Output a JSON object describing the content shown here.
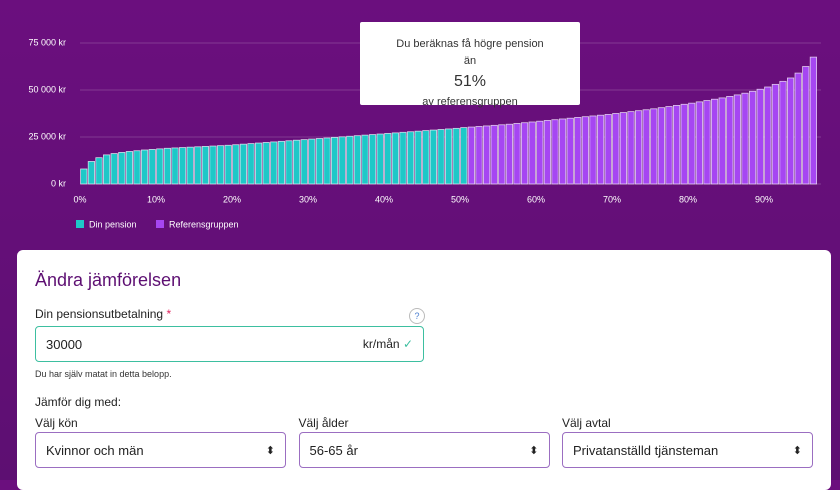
{
  "chart_data": {
    "type": "bar",
    "annotations": {
      "line1": "Du beräknas få högre pension",
      "line2": "än",
      "percent": "51%",
      "line3": "av referensgruppen"
    },
    "series": [
      {
        "name": "Din pension",
        "color": "#1ec8c8",
        "x": [
          1,
          2,
          3,
          4,
          5,
          6,
          7,
          8,
          9,
          10,
          11,
          12,
          13,
          14,
          15,
          16,
          17,
          18,
          19,
          20,
          21,
          22,
          23,
          24,
          25,
          26,
          27,
          28,
          29,
          30,
          31,
          32,
          33,
          34,
          35,
          36,
          37,
          38,
          39,
          40,
          41,
          42,
          43,
          44,
          45,
          46,
          47,
          48,
          49,
          50,
          51
        ],
        "values": [
          8000,
          12000,
          14000,
          15500,
          16200,
          16800,
          17300,
          17700,
          18100,
          18400,
          18700,
          19000,
          19200,
          19400,
          19600,
          19800,
          20000,
          20200,
          20400,
          20600,
          20900,
          21200,
          21500,
          21800,
          22100,
          22400,
          22700,
          23000,
          23300,
          23600,
          23900,
          24200,
          24500,
          24800,
          25100,
          25400,
          25700,
          26000,
          26300,
          26600,
          26900,
          27200,
          27500,
          27800,
          28100,
          28400,
          28700,
          29000,
          29300,
          29600,
          30000
        ]
      },
      {
        "name": "Referensgruppen",
        "color": "#a646f2",
        "x": [
          52,
          53,
          54,
          55,
          56,
          57,
          58,
          59,
          60,
          61,
          62,
          63,
          64,
          65,
          66,
          67,
          68,
          69,
          70,
          71,
          72,
          73,
          74,
          75,
          76,
          77,
          78,
          79,
          80,
          81,
          82,
          83,
          84,
          85,
          86,
          87,
          88,
          89,
          90,
          91,
          92,
          93,
          94,
          95,
          96,
          97
        ],
        "values": [
          30300,
          30600,
          30900,
          31200,
          31500,
          31800,
          32200,
          32600,
          33000,
          33400,
          33800,
          34200,
          34600,
          35000,
          35400,
          35800,
          36200,
          36600,
          37000,
          37500,
          38000,
          38500,
          39000,
          39500,
          40000,
          40600,
          41200,
          41800,
          42400,
          43000,
          43700,
          44400,
          45100,
          45800,
          46600,
          47400,
          48300,
          49300,
          50400,
          51600,
          53000,
          54600,
          56400,
          59000,
          62500,
          67500
        ]
      }
    ],
    "xlim": [
      0,
      97.5
    ],
    "xticks": [
      {
        "value": 0,
        "label": "0%"
      },
      {
        "value": 10,
        "label": "10%"
      },
      {
        "value": 20,
        "label": "20%"
      },
      {
        "value": 30,
        "label": "30%"
      },
      {
        "value": 40,
        "label": "40%"
      },
      {
        "value": 50,
        "label": "50%"
      },
      {
        "value": 60,
        "label": "60%"
      },
      {
        "value": 70,
        "label": "70%"
      },
      {
        "value": 80,
        "label": "80%"
      },
      {
        "value": 90,
        "label": "90%"
      }
    ],
    "ylim": [
      0,
      75000
    ],
    "yticks": [
      {
        "value": 0,
        "label": "0 kr"
      },
      {
        "value": 25000,
        "label": "25 000 kr"
      },
      {
        "value": 50000,
        "label": "50 000 kr"
      },
      {
        "value": 75000,
        "label": "75 000 kr"
      }
    ],
    "grid": true
  },
  "form": {
    "title": "Ändra jämförelsen",
    "pension_label": "Din pensionsutbetalning",
    "required": "*",
    "help": "?",
    "input_value": "30000",
    "unit": "kr/mån",
    "note": "Du har själv matat in detta belopp.",
    "compare_label": "Jämför dig med:",
    "selects": [
      {
        "label": "Välj kön",
        "value": "Kvinnor och män"
      },
      {
        "label": "Välj ålder",
        "value": "56-65 år"
      },
      {
        "label": "Välj avtal",
        "value": "Privatanställd tjänsteman"
      }
    ]
  }
}
